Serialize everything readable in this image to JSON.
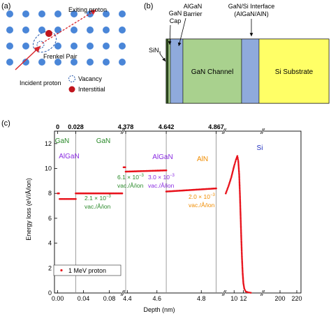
{
  "panel_a": {
    "label": "(a)",
    "exiting": "Exiting proton",
    "frenkel": "Frenkel Pair",
    "incident": "Incident proton",
    "legend_vacancy": "Vacancy",
    "legend_interstitial": "Interstitial",
    "lattice_color": "#4a86d8",
    "interstitial_color": "#c0141c",
    "arrow_color": "#d8262c"
  },
  "panel_b": {
    "label": "(b)",
    "gan_cap_1": "GaN",
    "gan_cap_2": "Cap",
    "algan_1": "AlGaN",
    "algan_2": "Barrier",
    "interface_1": "GaN/Si Interface",
    "interface_2": "(AlGaN/AlN)",
    "sinx": "SiN",
    "sinx_sub": "x",
    "gan_channel": "GaN Channel",
    "si_substrate": "Si Substrate",
    "colors": {
      "green": "#a9d18e",
      "blue": "#8faadc",
      "yellow": "#ffff66",
      "dark": "#2e4a1e"
    }
  },
  "panel_c": {
    "label": "(c)",
    "ylabel": "Energy loss (eV/Å/ion)",
    "xlabel": "Depth (nm)",
    "top_ticks": [
      "0",
      "0.028",
      "4.378",
      "4.642",
      "4.867"
    ],
    "regions": {
      "gan1": "GaN",
      "gan2": "GaN",
      "algan1": "AlGaN",
      "algan2": "AlGaN",
      "aln": "AlN",
      "si": "Si"
    },
    "ann1_a": "2.1 × 10",
    "ann1_exp": "−3",
    "ann1_b": "vac./Å/ion",
    "ann2_a": "6.1 × 10",
    "ann2_exp": "−3",
    "ann2_b": "vac./Å/ion",
    "ann3_a": "3.0 × 10",
    "ann3_exp": "−3",
    "ann3_b": "vac./Å/ion",
    "ann4_a": "2.0 × 10",
    "ann4_exp": "−3",
    "ann4_b": "vac./Å/ion",
    "legend": "1 MeV proton",
    "colors": {
      "green": "#2a8a2a",
      "purple": "#8a2be2",
      "orange": "#f08c00",
      "blue": "#2030c0",
      "data": "#e8111a"
    }
  },
  "chart_data": {
    "type": "scatter",
    "xlabel": "Depth (nm)",
    "ylabel": "Energy loss (eV/Å/ion)",
    "ylim": [
      0,
      13
    ],
    "y_ticks": [
      0,
      2,
      4,
      6,
      8,
      10,
      12
    ],
    "segments": [
      {
        "xlim": [
          -0.005,
          0.1
        ],
        "x_ticks": [
          0.0,
          0.04,
          0.08
        ],
        "x_tick_labels": [
          "0.00",
          "0.04",
          "0.08"
        ]
      },
      {
        "xlim": [
          4.35,
          4.5
        ],
        "x_ticks": [
          4.4
        ],
        "x_tick_labels": [
          "4.4"
        ]
      },
      {
        "xlim": [
          4.5,
          4.9
        ],
        "x_ticks": [
          4.6,
          4.8
        ],
        "x_tick_labels": [
          "4.6",
          "4.8"
        ]
      },
      {
        "xlim": [
          8,
          16
        ],
        "x_ticks": [
          10,
          12
        ],
        "x_tick_labels": [
          "10",
          "12"
        ]
      },
      {
        "xlim": [
          180,
          225
        ],
        "x_ticks": [
          200,
          220
        ],
        "x_tick_labels": [
          "200",
          "220"
        ]
      }
    ],
    "series": [
      {
        "name": "1 MeV proton",
        "layers": [
          {
            "x_start": 0.0,
            "x_end": 0.002,
            "y": 8.0
          },
          {
            "x_start": 0.003,
            "x_end": 0.028,
            "y": 7.55
          },
          {
            "x_start": 0.028,
            "x_end": 0.1,
            "y": 8.0
          },
          {
            "x_start": 4.35,
            "x_end": 4.372,
            "y": 10.1
          },
          {
            "x_start": 4.378,
            "x_end": 4.642,
            "y": 9.75,
            "y_end": 9.85
          },
          {
            "x_start": 4.642,
            "x_end": 4.867,
            "y": 8.15,
            "y_end": 8.4
          }
        ],
        "si_peak": [
          [
            8.2,
            8.0
          ],
          [
            8.8,
            8.6
          ],
          [
            9.4,
            9.3
          ],
          [
            10.0,
            10.2
          ],
          [
            10.4,
            10.7
          ],
          [
            10.7,
            11.0
          ],
          [
            10.9,
            10.6
          ],
          [
            11.1,
            9.5
          ],
          [
            11.25,
            8.0
          ],
          [
            11.4,
            6.2
          ],
          [
            11.55,
            4.4
          ],
          [
            11.7,
            2.8
          ],
          [
            11.85,
            1.6
          ],
          [
            12.0,
            0.8
          ],
          [
            12.2,
            0.35
          ],
          [
            12.5,
            0.12
          ],
          [
            13.0,
            0.05
          ],
          [
            13.6,
            0.02
          ]
        ]
      }
    ]
  }
}
